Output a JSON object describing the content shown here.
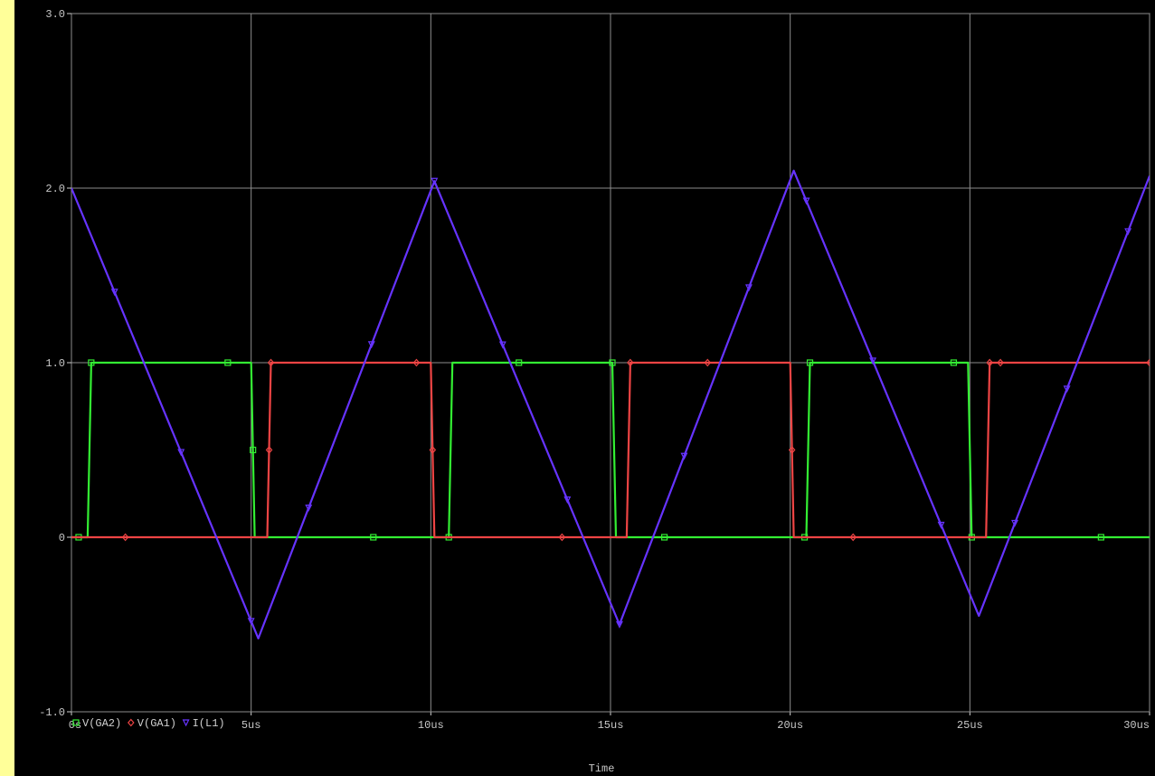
{
  "chart_data": {
    "type": "line",
    "xlabel": "Time",
    "ylabel": "",
    "xlim": [
      0,
      30
    ],
    "ylim": [
      -1.0,
      3.0
    ],
    "grid": true,
    "x_ticks": [
      0,
      5,
      10,
      15,
      20,
      25,
      30
    ],
    "x_tick_labels": [
      "0s",
      "5us",
      "10us",
      "15us",
      "20us",
      "25us",
      "30us"
    ],
    "y_ticks": [
      -1.0,
      0,
      1.0,
      2.0,
      3.0
    ],
    "y_tick_labels": [
      "-1.0",
      "0",
      "1.0",
      "2.0",
      "3.0"
    ],
    "legend_position": "bottom-left",
    "series": [
      {
        "name": "V(GA2)",
        "color": "#33ee33",
        "marker": "square",
        "x": [
          0,
          0.45,
          0.55,
          5.0,
          5.1,
          10.5,
          10.6,
          15.05,
          15.15,
          20.45,
          20.55,
          24.95,
          25.05,
          30
        ],
        "y": [
          0,
          0,
          1,
          1,
          0,
          0,
          1,
          1,
          0,
          0,
          1,
          1,
          0,
          0
        ]
      },
      {
        "name": "V(GA1)",
        "color": "#ee4444",
        "marker": "diamond",
        "x": [
          0,
          5.45,
          5.55,
          10.0,
          10.1,
          15.45,
          15.55,
          20.0,
          20.1,
          25.45,
          25.55,
          30
        ],
        "y": [
          0,
          0,
          1,
          1,
          0,
          0,
          1,
          1,
          0,
          0,
          1,
          1
        ]
      },
      {
        "name": "I(L1)",
        "color": "#6633ff",
        "marker": "triangle-down",
        "x": [
          0,
          5.2,
          10.1,
          15.25,
          20.1,
          25.25,
          30
        ],
        "y": [
          2.0,
          -0.58,
          2.04,
          -0.5,
          2.1,
          -0.45,
          2.07
        ]
      }
    ]
  }
}
